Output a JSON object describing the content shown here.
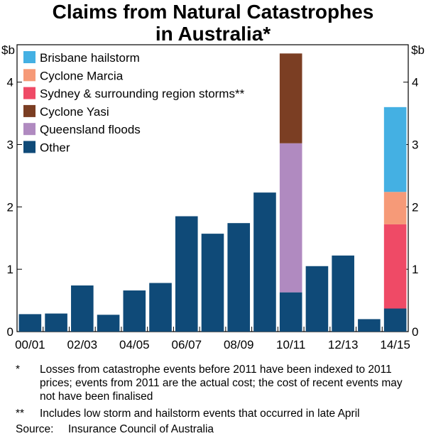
{
  "title_line1": "Claims from Natural Catastrophes",
  "title_line2": "in Australia*",
  "chart_data": {
    "type": "bar",
    "stacked": true,
    "title": "Claims from Natural Catastrophes in Australia*",
    "unit_left": "$b",
    "unit_right": "$b",
    "ylim": [
      0,
      4.6
    ],
    "yticks": [
      0,
      1,
      2,
      3,
      4
    ],
    "grid": false,
    "legend_position": "top-left",
    "categories": [
      "00/01",
      "01/02",
      "02/03",
      "03/04",
      "04/05",
      "05/06",
      "06/07",
      "07/08",
      "08/09",
      "09/10",
      "10/11",
      "11/12",
      "12/13",
      "13/14",
      "14/15"
    ],
    "x_tick_labels": [
      "00/01",
      "02/03",
      "04/05",
      "06/07",
      "08/09",
      "10/11",
      "12/13",
      "14/15"
    ],
    "series": [
      {
        "name": "Other",
        "color": "#0f4a78",
        "values": [
          0.28,
          0.29,
          0.74,
          0.27,
          0.66,
          0.78,
          1.85,
          1.57,
          1.74,
          2.23,
          0.63,
          1.05,
          1.22,
          0.2,
          0.37
        ]
      },
      {
        "name": "Queensland floods",
        "color": "#b08ac0",
        "values": [
          0,
          0,
          0,
          0,
          0,
          0,
          0,
          0,
          0,
          0,
          2.39,
          0,
          0,
          0,
          0
        ]
      },
      {
        "name": "Cyclone Yasi",
        "color": "#7b3e23",
        "values": [
          0,
          0,
          0,
          0,
          0,
          0,
          0,
          0,
          0,
          0,
          1.44,
          0,
          0,
          0,
          0
        ]
      },
      {
        "name": "Sydney & surrounding region storms**",
        "color": "#ef4a66",
        "values": [
          0,
          0,
          0,
          0,
          0,
          0,
          0,
          0,
          0,
          0,
          0,
          0,
          0,
          0,
          1.35
        ]
      },
      {
        "name": "Cyclone Marcia",
        "color": "#f69a78",
        "values": [
          0,
          0,
          0,
          0,
          0,
          0,
          0,
          0,
          0,
          0,
          0,
          0,
          0,
          0,
          0.52
        ]
      },
      {
        "name": "Brisbane hailstorm",
        "color": "#44b0e3",
        "values": [
          0,
          0,
          0,
          0,
          0,
          0,
          0,
          0,
          0,
          0,
          0,
          0,
          0,
          0,
          1.36
        ]
      }
    ],
    "legend_order": [
      "Brisbane hailstorm",
      "Cyclone Marcia",
      "Sydney & surrounding region storms**",
      "Cyclone Yasi",
      "Queensland floods",
      "Other"
    ]
  },
  "notes": [
    {
      "mark": "*",
      "text": "Losses from catastrophe events before 2011 have been indexed to 2011 prices; events from 2011 are the actual cost; the cost of recent events may not have been finalised"
    },
    {
      "mark": "**",
      "text": "Includes low storm and hailstorm events that occurred in late April"
    }
  ],
  "source_label": "Source:",
  "source_text": "Insurance Council of Australia"
}
